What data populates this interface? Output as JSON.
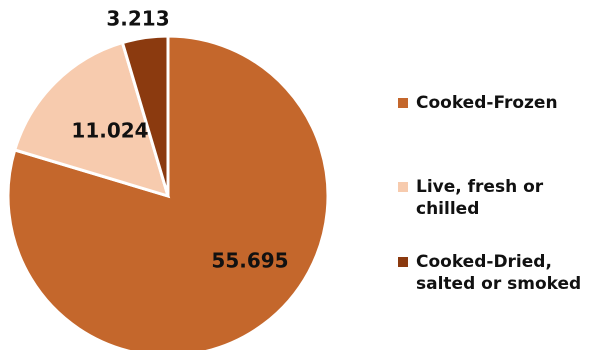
{
  "chart_data": {
    "type": "pie",
    "title": "",
    "slices": [
      {
        "label": "Cooked-Frozen",
        "value": 55.695,
        "value_label": "55.695",
        "color": "#C4672C"
      },
      {
        "label": "Live, fresh or chilled",
        "value": 11.024,
        "value_label": "11.024",
        "color": "#F7CBAE"
      },
      {
        "label": "Cooked-Dried, salted or smoked",
        "value": 3.213,
        "value_label": "3.213",
        "color": "#8B3A0F"
      }
    ],
    "legend_position": "right"
  }
}
